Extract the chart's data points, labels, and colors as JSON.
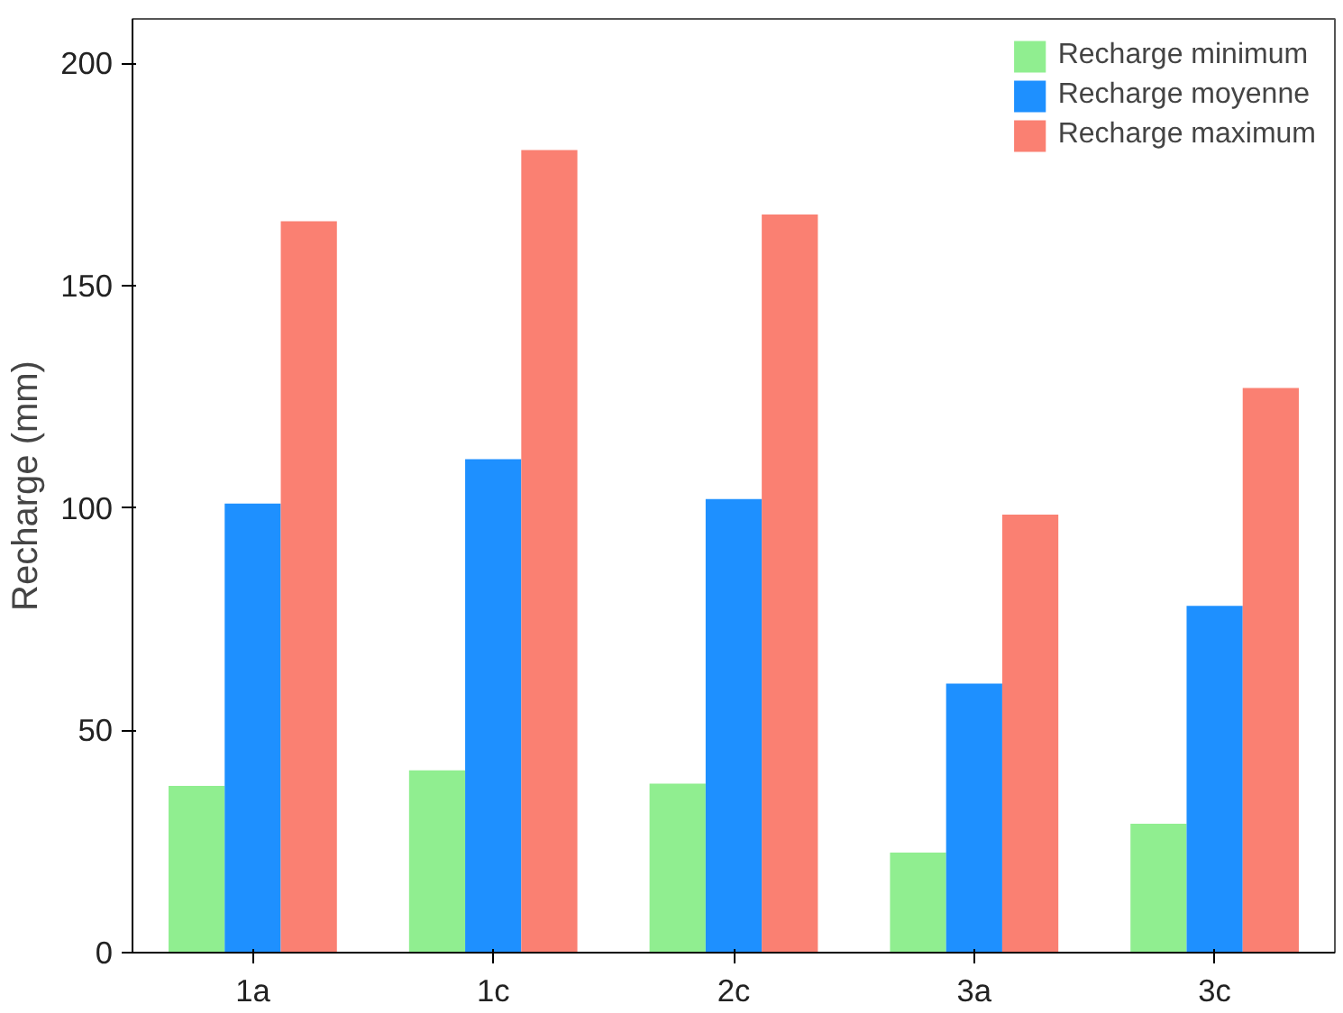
{
  "chart_data": {
    "type": "bar",
    "ylabel": "Recharge (mm)",
    "categories": [
      "1a",
      "1c",
      "2c",
      "3a",
      "3c"
    ],
    "series": [
      {
        "name": "Recharge minimum",
        "color": "#90ee90",
        "values": [
          37.5,
          41,
          38,
          22.5,
          29
        ]
      },
      {
        "name": "Recharge moyenne",
        "color": "#1e90ff",
        "values": [
          101,
          111,
          102,
          60.5,
          78
        ]
      },
      {
        "name": "Recharge maximum",
        "color": "#fa8072",
        "values": [
          164.5,
          180.5,
          166,
          98.5,
          127
        ]
      }
    ],
    "ylim": [
      0,
      210
    ],
    "yticks": [
      0,
      50,
      100,
      150,
      200
    ],
    "grid": false,
    "legend": "top right"
  }
}
